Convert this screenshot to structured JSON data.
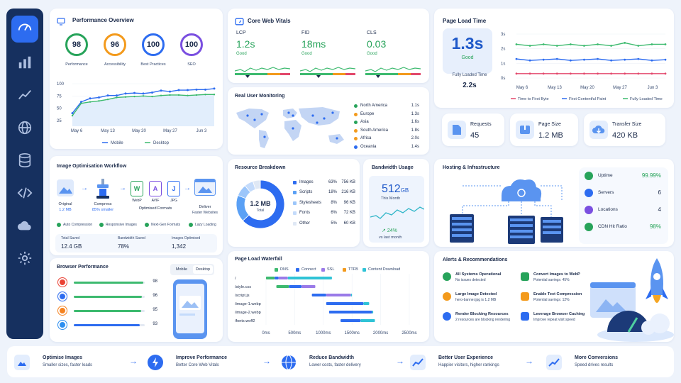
{
  "perf": {
    "title": "Performance Overview",
    "scores": [
      {
        "v": "98",
        "label": "Performance",
        "color": "#27a35a"
      },
      {
        "v": "96",
        "label": "Accessibility",
        "color": "#f39a1c"
      },
      {
        "v": "100",
        "label": "Best Practices",
        "color": "#2d6cf0"
      },
      {
        "v": "100",
        "label": "SEO",
        "color": "#7a4fe0"
      }
    ],
    "chart": {
      "yticks": [
        "100",
        "75",
        "50",
        "25"
      ],
      "xticks": [
        "May 6",
        "May 13",
        "May 20",
        "May 27",
        "Jun 3"
      ],
      "legend": [
        "Mobile",
        "Desktop"
      ],
      "ylim": [
        0,
        100
      ],
      "mobile": [
        40,
        63,
        70,
        72,
        76,
        76,
        80,
        81,
        80,
        82,
        86,
        84,
        87,
        87,
        88,
        88,
        90
      ],
      "desktop": [
        35,
        60,
        63,
        65,
        68,
        72,
        73,
        74,
        75,
        74,
        76,
        77,
        77,
        76,
        77,
        78,
        78
      ]
    }
  },
  "cwv": {
    "title": "Core Web Vitals",
    "items": [
      {
        "name": "LCP",
        "value": "1.2s",
        "status": "Good"
      },
      {
        "name": "FID",
        "value": "18ms",
        "status": "Good"
      },
      {
        "name": "CLS",
        "value": "0.03",
        "status": "Good"
      }
    ]
  },
  "rum": {
    "title": "Real User Monitoring",
    "regions": [
      {
        "name": "North America",
        "v": "1.1s",
        "c": "#27a35a"
      },
      {
        "name": "Europe",
        "v": "1.3s",
        "c": "#f39a1c"
      },
      {
        "name": "Asia",
        "v": "1.6s",
        "c": "#27a35a"
      },
      {
        "name": "South America",
        "v": "1.8s",
        "c": "#f39a1c"
      },
      {
        "name": "Africa",
        "v": "2.0s",
        "c": "#f39a1c"
      },
      {
        "name": "Oceania",
        "v": "1.4s",
        "c": "#2d6cf0"
      }
    ]
  },
  "plt": {
    "title": "Page Load Time",
    "big": "1.3s",
    "big_status": "Good",
    "full_label": "Fully Loaded Time",
    "full_value": "2.2s",
    "chart": {
      "yticks": [
        "3s",
        "2s",
        "1s",
        "0s"
      ],
      "xticks": [
        "May 6",
        "May 13",
        "May 20",
        "May 27",
        "Jun 3"
      ],
      "ylim": [
        0,
        3.5
      ],
      "series": [
        {
          "name": "Time to First Byte",
          "color": "#e2476b",
          "values": [
            0.3,
            0.3,
            0.3,
            0.3,
            0.3,
            0.3,
            0.3,
            0.3,
            0.3,
            0.3,
            0.3,
            0.3
          ]
        },
        {
          "name": "First Contentful Paint",
          "color": "#2d6cf0",
          "values": [
            1.3,
            1.2,
            1.25,
            1.3,
            1.2,
            1.25,
            1.3,
            1.2,
            1.25,
            1.3,
            1.2,
            1.25
          ]
        },
        {
          "name": "Fully Loaded Time",
          "color": "#3dba6f",
          "values": [
            2.3,
            2.2,
            2.3,
            2.2,
            2.3,
            2.2,
            2.3,
            2.2,
            2.4,
            2.2,
            2.3,
            2.3
          ]
        }
      ]
    }
  },
  "stats": [
    {
      "label": "Requests",
      "value": "45"
    },
    {
      "label": "Page Size",
      "value": "1.2 MB"
    },
    {
      "label": "Transfer Size",
      "value": "420 KB"
    }
  ],
  "img": {
    "title": "Image Optimisation Workflow",
    "original": "Original",
    "original_size": "1.2 MB",
    "compress": "Compress",
    "compress_sub": "85% smaller",
    "formats": [
      "WebP",
      "AVIF",
      "JPG"
    ],
    "formats_label": "Optimised Formats",
    "deliver": "Deliver",
    "deliver_sub": "Faster Websites",
    "checks": [
      "Auto Compression",
      "Responsive Images",
      "Next-Gen Formats",
      "Lazy Loading"
    ],
    "totals": [
      {
        "label": "Total Saved",
        "value": "12.4 GB"
      },
      {
        "label": "Bandwidth Saved",
        "value": "78%"
      },
      {
        "label": "Images Optimised",
        "value": "1,342"
      }
    ]
  },
  "res": {
    "title": "Resource Breakdown",
    "center": "1.2 MB",
    "center_sub": "Total",
    "rows": [
      {
        "name": "Images",
        "pct": "63%",
        "size": "756 KB",
        "c": "#2d6cf0",
        "frac": 0.63
      },
      {
        "name": "Scripts",
        "pct": "18%",
        "size": "216 KB",
        "c": "#5aa0f5",
        "frac": 0.18
      },
      {
        "name": "Stylesheets",
        "pct": "8%",
        "size": "96 KB",
        "c": "#9cc6fa",
        "frac": 0.08
      },
      {
        "name": "Fonts",
        "pct": "6%",
        "size": "72 KB",
        "c": "#c4dbfb",
        "frac": 0.06
      },
      {
        "name": "Other",
        "pct": "5%",
        "size": "60 KB",
        "c": "#dfe8f5",
        "frac": 0.05
      }
    ]
  },
  "bw": {
    "title": "Bandwidth Usage",
    "value": "512",
    "unit": "GB",
    "sub": "This Month",
    "change": "24%",
    "change_sub": "vs last month"
  },
  "host": {
    "title": "Hosting & Infrastructure",
    "rows": [
      {
        "label": "Uptime",
        "value": "99.99%"
      },
      {
        "label": "Servers",
        "value": "6"
      },
      {
        "label": "Locations",
        "value": "4"
      },
      {
        "label": "CDN Hit Ratio",
        "value": "98%"
      }
    ]
  },
  "browser": {
    "title": "Browser Performance",
    "tabs": [
      "Mobile",
      "Desktop"
    ],
    "rows": [
      {
        "v": "98",
        "frac": 0.98,
        "c": "#3dba6f"
      },
      {
        "v": "96",
        "frac": 0.96,
        "c": "#3dba6f"
      },
      {
        "v": "95",
        "frac": 0.95,
        "c": "#3dba6f"
      },
      {
        "v": "93",
        "frac": 0.93,
        "c": "#2d6cf0"
      }
    ]
  },
  "wf": {
    "title": "Page Load Waterfall",
    "legend": [
      {
        "n": "DNS",
        "c": "#3dba6f"
      },
      {
        "n": "Connect",
        "c": "#2d6cf0"
      },
      {
        "n": "SSL",
        "c": "#9a7ae8"
      },
      {
        "n": "TTFB",
        "c": "#f39a1c"
      },
      {
        "n": "Content Download",
        "c": "#2fc3d6"
      }
    ],
    "rows": [
      {
        "f": "/",
        "s": [
          [
            0,
            150,
            "#3dba6f"
          ],
          [
            150,
            220,
            "#2d6cf0"
          ],
          [
            220,
            380,
            "#9a7ae8"
          ],
          [
            380,
            1150,
            "#2fc3d6"
          ]
        ]
      },
      {
        "f": "/style.css",
        "s": [
          [
            180,
            400,
            "#3dba6f"
          ],
          [
            400,
            620,
            "#2d6cf0"
          ],
          [
            620,
            860,
            "#9a7ae8"
          ]
        ]
      },
      {
        "f": "/script.js",
        "s": [
          [
            800,
            1050,
            "#2d6cf0"
          ],
          [
            1050,
            1480,
            "#9a7ae8"
          ],
          [
            1480,
            1500,
            "#2fc3d6"
          ]
        ]
      },
      {
        "f": "/image-1.webp",
        "s": [
          [
            1050,
            1700,
            "#2d6cf0"
          ],
          [
            1700,
            1800,
            "#2fc3d6"
          ]
        ]
      },
      {
        "f": "/image-2.webp",
        "s": [
          [
            1100,
            1850,
            "#2d6cf0"
          ],
          [
            1850,
            1870,
            "#2fc3d6"
          ]
        ]
      },
      {
        "f": "/fonts.woff2",
        "s": [
          [
            1300,
            1650,
            "#2d6cf0"
          ],
          [
            1650,
            1900,
            "#2fc3d6"
          ]
        ]
      }
    ],
    "xticks": [
      "0ms",
      "500ms",
      "1000ms",
      "1500ms",
      "2000ms",
      "2500ms"
    ],
    "xmax": 2500
  },
  "alerts": {
    "title": "Alerts & Recommendations",
    "items": [
      {
        "t": "All Systems Operational",
        "d": "No issues detected",
        "c": "#27a35a"
      },
      {
        "t": "Large Image Detected",
        "d": "hero-banner.jpg is 1.2 MB",
        "c": "#f39a1c"
      },
      {
        "t": "Render Blocking Resources",
        "d": "2 resources are blocking rendering",
        "c": "#2d6cf0"
      },
      {
        "t": "Convert Images to WebP",
        "d": "Potential savings: 45%",
        "c": "#27a35a"
      },
      {
        "t": "Enable Text Compression",
        "d": "Potential savings: 12%",
        "c": "#f39a1c"
      },
      {
        "t": "Leverage Browser Caching",
        "d": "Improve repeat visit speed",
        "c": "#2d6cf0"
      }
    ]
  },
  "bottom": [
    {
      "t": "Optimise Images",
      "d": "Smaller sizes, faster loads"
    },
    {
      "t": "Improve Performance",
      "d": "Better Core Web Vitals"
    },
    {
      "t": "Reduce Bandwidth",
      "d": "Lower costs, faster delivery"
    },
    {
      "t": "Better User Experience",
      "d": "Happier visitors, higher rankings"
    },
    {
      "t": "More Conversions",
      "d": "Speed drives results"
    }
  ]
}
